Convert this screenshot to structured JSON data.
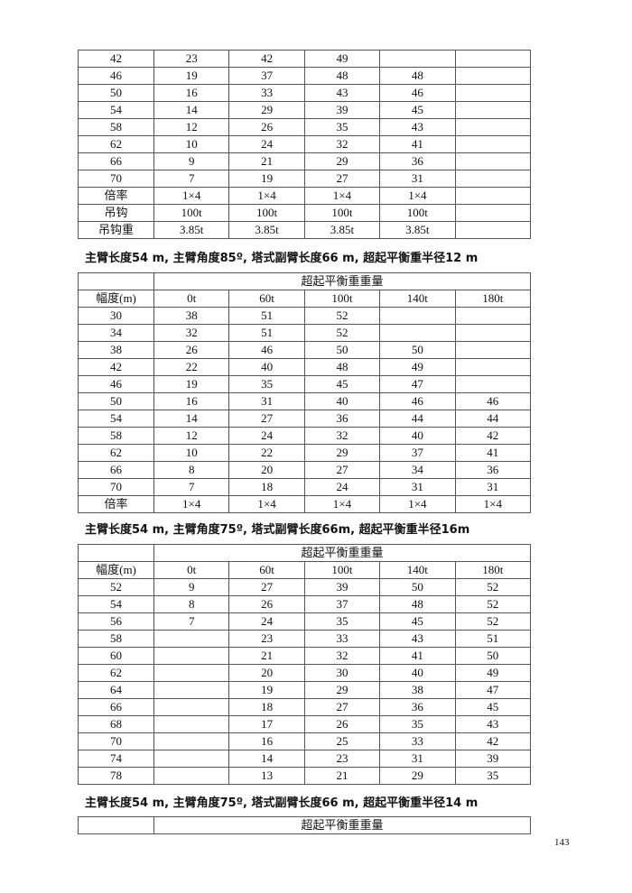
{
  "table1": {
    "rows": [
      [
        "42",
        "23",
        "42",
        "49",
        "",
        ""
      ],
      [
        "46",
        "19",
        "37",
        "48",
        "48",
        ""
      ],
      [
        "50",
        "16",
        "33",
        "43",
        "46",
        ""
      ],
      [
        "54",
        "14",
        "29",
        "39",
        "45",
        ""
      ],
      [
        "58",
        "12",
        "26",
        "35",
        "43",
        ""
      ],
      [
        "62",
        "10",
        "24",
        "32",
        "41",
        ""
      ],
      [
        "66",
        "9",
        "21",
        "29",
        "36",
        ""
      ],
      [
        "70",
        "7",
        "19",
        "27",
        "31",
        ""
      ],
      [
        "倍率",
        "1×4",
        "1×4",
        "1×4",
        "1×4",
        ""
      ],
      [
        "吊钩",
        "100t",
        "100t",
        "100t",
        "100t",
        ""
      ],
      [
        "吊钩重",
        "3.85t",
        "3.85t",
        "3.85t",
        "3.85t",
        ""
      ]
    ]
  },
  "caption1": "主臂长度54 m, 主臂角度85º, 塔式副臂长度66 m, 超起平衡重半径12 m",
  "table2": {
    "group_header": "超起平衡重重量",
    "headers": [
      "幅度(m)",
      "0t",
      "60t",
      "100t",
      "140t",
      "180t"
    ],
    "rows": [
      [
        "30",
        "38",
        "51",
        "52",
        "",
        ""
      ],
      [
        "34",
        "32",
        "51",
        "52",
        "",
        ""
      ],
      [
        "38",
        "26",
        "46",
        "50",
        "50",
        ""
      ],
      [
        "42",
        "22",
        "40",
        "48",
        "49",
        ""
      ],
      [
        "46",
        "19",
        "35",
        "45",
        "47",
        ""
      ],
      [
        "50",
        "16",
        "31",
        "40",
        "46",
        "46"
      ],
      [
        "54",
        "14",
        "27",
        "36",
        "44",
        "44"
      ],
      [
        "58",
        "12",
        "24",
        "32",
        "40",
        "42"
      ],
      [
        "62",
        "10",
        "22",
        "29",
        "37",
        "41"
      ],
      [
        "66",
        "8",
        "20",
        "27",
        "34",
        "36"
      ],
      [
        "70",
        "7",
        "18",
        "24",
        "31",
        "31"
      ],
      [
        "倍率",
        "1×4",
        "1×4",
        "1×4",
        "1×4",
        "1×4"
      ]
    ]
  },
  "caption2": "主臂长度54 m, 主臂角度75º, 塔式副臂长度66m, 超起平衡重半径16m",
  "table3": {
    "group_header": "超起平衡重重量",
    "headers": [
      "幅度(m)",
      "0t",
      "60t",
      "100t",
      "140t",
      "180t"
    ],
    "rows": [
      [
        "52",
        "9",
        "27",
        "39",
        "50",
        "52"
      ],
      [
        "54",
        "8",
        "26",
        "37",
        "48",
        "52"
      ],
      [
        "56",
        "7",
        "24",
        "35",
        "45",
        "52"
      ],
      [
        "58",
        "",
        "23",
        "33",
        "43",
        "51"
      ],
      [
        "60",
        "",
        "21",
        "32",
        "41",
        "50"
      ],
      [
        "62",
        "",
        "20",
        "30",
        "40",
        "49"
      ],
      [
        "64",
        "",
        "19",
        "29",
        "38",
        "47"
      ],
      [
        "66",
        "",
        "18",
        "27",
        "36",
        "45"
      ],
      [
        "68",
        "",
        "17",
        "26",
        "35",
        "43"
      ],
      [
        "70",
        "",
        "16",
        "25",
        "33",
        "42"
      ],
      [
        "74",
        "",
        "14",
        "23",
        "31",
        "39"
      ],
      [
        "78",
        "",
        "13",
        "21",
        "29",
        "35"
      ]
    ]
  },
  "caption3": "主臂长度54 m, 主臂角度75º, 塔式副臂长度66 m, 超起平衡重半径14 m",
  "table4": {
    "group_header": "超起平衡重重量"
  },
  "page_number": "143"
}
